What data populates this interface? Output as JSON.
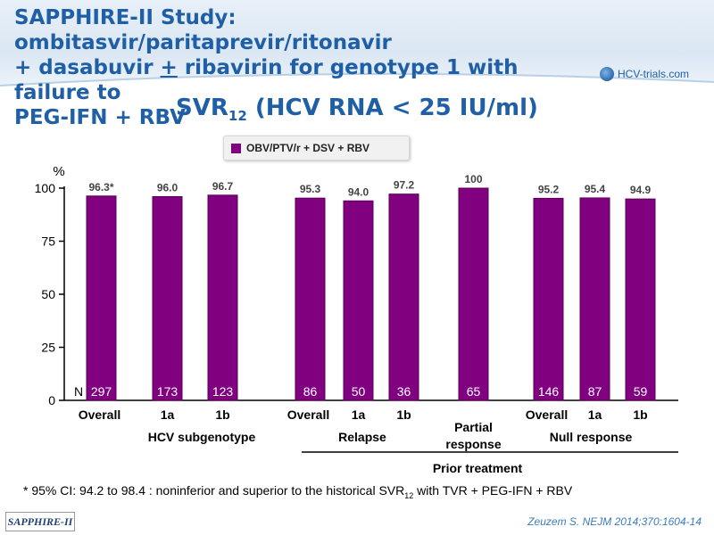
{
  "header": {
    "title_line1": "SAPPHIRE-II Study: ombitasvir/paritaprevir/ritonavir",
    "title_line2_plus": "+ dasabuvir ",
    "title_line2_pm": "+",
    "title_line2_rest": " ribavirin for genotype 1 with failure to",
    "title_line3": "PEG-IFN + RBV",
    "logo_text": "HCV-trials.com"
  },
  "subtitle": {
    "main": "SVR",
    "sub": "12",
    "rest": " (HCV RNA < 25 IU/ml)"
  },
  "legend": {
    "label": "OBV/PTV/r + DSV + RBV"
  },
  "colors": {
    "bar": "#800080",
    "bar_stroke": "#5a005a",
    "title": "#1f5fa6",
    "axis": "#000000"
  },
  "chart_data": {
    "type": "bar",
    "ylabel": "%",
    "ylim": [
      0,
      100
    ],
    "yticks": [
      0,
      25,
      50,
      75,
      100
    ],
    "n_label": "N",
    "series": [
      {
        "name": "OBV/PTV/r + DSV + RBV"
      }
    ],
    "bars": [
      {
        "category": "Overall",
        "value": 96.3,
        "label": "96.3*",
        "n": "297"
      },
      {
        "category": "1a",
        "value": 96.0,
        "label": "96.0",
        "n": "173"
      },
      {
        "category": "1b",
        "value": 96.7,
        "label": "96.7",
        "n": "123"
      },
      {
        "category": "Overall",
        "value": 95.3,
        "label": "95.3",
        "n": "86"
      },
      {
        "category": "1a",
        "value": 94.0,
        "label": "94.0",
        "n": "50"
      },
      {
        "category": "1b",
        "value": 97.2,
        "label": "97.2",
        "n": "36"
      },
      {
        "category": "Partial response",
        "value": 100,
        "label": "100",
        "n": "65"
      },
      {
        "category": "Overall",
        "value": 95.2,
        "label": "95.2",
        "n": "146"
      },
      {
        "category": "1a",
        "value": 95.4,
        "label": "95.4",
        "n": "87"
      },
      {
        "category": "1b",
        "value": 94.9,
        "label": "94.9",
        "n": "59"
      }
    ],
    "group_labels": [
      "HCV subgenotype",
      "Relapse",
      "Null response"
    ],
    "partial_label_line1": "Partial",
    "partial_label_line2": "response",
    "super_group_label": "Prior treatment"
  },
  "footnote": {
    "prefix": "* 95% CI: 94.2 to 98.4 :  noninferior  and superior to the historical SVR",
    "sub": "12",
    "suffix": " with TVR + PEG-IFN + RBV"
  },
  "badge": "SAPPHIRE-II",
  "citation": "Zeuzem S. NEJM 2014;370:1604-14"
}
